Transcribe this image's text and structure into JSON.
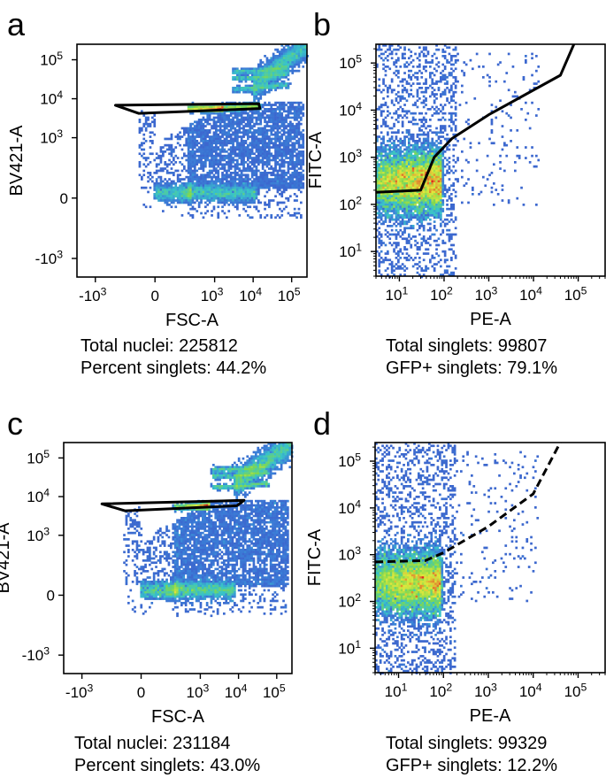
{
  "figure": {
    "panels": [
      {
        "letter": "a",
        "stats": [
          "Total nuclei: 225812",
          "Percent singlets: 44.2%"
        ]
      },
      {
        "letter": "b",
        "stats": [
          "Total singlets: 99807",
          "GFP+ singlets: 79.1%"
        ]
      },
      {
        "letter": "c",
        "stats": [
          "Total nuclei: 231184",
          "Percent singlets: 43.0%"
        ]
      },
      {
        "letter": "d",
        "stats": [
          "Total singlets: 99329",
          "GFP+ singlets: 12.2%"
        ]
      }
    ]
  },
  "colors": {
    "density_low": "#3c56c8",
    "density_mid": "#38c4c8",
    "density_high": "#e0e83c",
    "density_peak": "#e02820",
    "gate": "#000000"
  },
  "chart_data": [
    {
      "panel": "a",
      "type": "scatter",
      "subtype": "flow-cytometry density",
      "xlabel": "FSC-A",
      "ylabel": "BV421-A",
      "x_scale": "biexponential",
      "y_scale": "biexponential",
      "xlim": [
        -3000,
        250000
      ],
      "ylim": [
        -3000,
        250000
      ],
      "x_ticks": [
        {
          "value": -1000,
          "base": "-10",
          "exp": "3"
        },
        {
          "value": 0,
          "base": "0",
          "exp": ""
        },
        {
          "value": 1000,
          "base": "10",
          "exp": "3"
        },
        {
          "value": 10000,
          "base": "10",
          "exp": "4"
        },
        {
          "value": 100000,
          "base": "10",
          "exp": "5"
        }
      ],
      "y_ticks": [
        {
          "value": -1000,
          "base": "-10",
          "exp": "3"
        },
        {
          "value": 0,
          "base": "0",
          "exp": ""
        },
        {
          "value": 1000,
          "base": "10",
          "exp": "3"
        },
        {
          "value": 10000,
          "base": "10",
          "exp": "4"
        },
        {
          "value": 100000,
          "base": "10",
          "exp": "5"
        }
      ],
      "populations": [
        {
          "name": "main",
          "x_range": [
            0,
            200000
          ],
          "y_range": [
            0,
            8000
          ]
        },
        {
          "name": "baseline",
          "x_range": [
            0,
            12000
          ],
          "y": 30
        },
        {
          "name": "singlet-band",
          "x_range": [
            200,
            15000
          ],
          "y": 5500
        },
        {
          "name": "doublet-band",
          "x_range": [
            3000,
            80000
          ],
          "y": 18000
        },
        {
          "name": "upper-diagonal",
          "x_range": [
            10000,
            240000
          ],
          "y_range": [
            20000,
            240000
          ]
        }
      ],
      "gate": {
        "shape": "polygon",
        "style": "solid",
        "vertices": [
          [
            -300,
            6800
          ],
          [
            14000,
            7500
          ],
          [
            15000,
            5600
          ],
          [
            -100,
            4200
          ]
        ]
      },
      "total_events": 225812,
      "percent_singlets": 44.2
    },
    {
      "panel": "b",
      "type": "scatter",
      "subtype": "flow-cytometry density",
      "xlabel": "PE-A",
      "ylabel": "FITC-A",
      "x_scale": "log",
      "y_scale": "log",
      "xlim": [
        3,
        400000
      ],
      "ylim": [
        3,
        250000
      ],
      "x_ticks": [
        {
          "value": 10,
          "base": "10",
          "exp": "1"
        },
        {
          "value": 100,
          "base": "10",
          "exp": "2"
        },
        {
          "value": 1000,
          "base": "10",
          "exp": "3"
        },
        {
          "value": 10000,
          "base": "10",
          "exp": "4"
        },
        {
          "value": 100000,
          "base": "10",
          "exp": "5"
        }
      ],
      "y_ticks": [
        {
          "value": 10,
          "base": "10",
          "exp": "1"
        },
        {
          "value": 100,
          "base": "10",
          "exp": "2"
        },
        {
          "value": 1000,
          "base": "10",
          "exp": "3"
        },
        {
          "value": 10000,
          "base": "10",
          "exp": "4"
        },
        {
          "value": 100000,
          "base": "10",
          "exp": "5"
        }
      ],
      "populations": [
        {
          "name": "core",
          "x_range": [
            3,
            90
          ],
          "y_range": [
            60,
            3000
          ],
          "center_y": 300
        }
      ],
      "gate": {
        "shape": "polyline",
        "style": "solid",
        "vertices": [
          [
            3,
            180
          ],
          [
            30,
            200
          ],
          [
            60,
            1000
          ],
          [
            150,
            2500
          ],
          [
            1000,
            8000
          ],
          [
            40000,
            55000
          ],
          [
            80000,
            250000
          ]
        ]
      },
      "total_events": 99807,
      "percent_gfp_positive": 79.1
    },
    {
      "panel": "c",
      "type": "scatter",
      "subtype": "flow-cytometry density",
      "xlabel": "FSC-A",
      "ylabel": "BV421-A",
      "x_scale": "biexponential",
      "y_scale": "biexponential",
      "xlim": [
        -3000,
        250000
      ],
      "ylim": [
        -3000,
        250000
      ],
      "x_ticks": [
        {
          "value": -1000,
          "base": "-10",
          "exp": "3"
        },
        {
          "value": 0,
          "base": "0",
          "exp": ""
        },
        {
          "value": 1000,
          "base": "10",
          "exp": "3"
        },
        {
          "value": 10000,
          "base": "10",
          "exp": "4"
        },
        {
          "value": 100000,
          "base": "10",
          "exp": "5"
        }
      ],
      "y_ticks": [
        {
          "value": -1000,
          "base": "-10",
          "exp": "3"
        },
        {
          "value": 0,
          "base": "0",
          "exp": ""
        },
        {
          "value": 1000,
          "base": "10",
          "exp": "3"
        },
        {
          "value": 10000,
          "base": "10",
          "exp": "4"
        },
        {
          "value": 100000,
          "base": "10",
          "exp": "5"
        }
      ],
      "populations": [
        {
          "name": "main",
          "x_range": [
            0,
            200000
          ],
          "y_range": [
            0,
            8000
          ]
        },
        {
          "name": "baseline",
          "x_range": [
            0,
            8000
          ],
          "y": 30
        },
        {
          "name": "singlet-band",
          "x_range": [
            0,
            12000
          ],
          "y": 5500
        },
        {
          "name": "doublet-band",
          "x_range": [
            2000,
            60000
          ],
          "y": 18000
        },
        {
          "name": "upper-diagonal",
          "x_range": [
            8000,
            240000
          ],
          "y_range": [
            20000,
            240000
          ]
        }
      ],
      "gate": {
        "shape": "polygon",
        "style": "solid",
        "vertices": [
          [
            -300,
            6500
          ],
          [
            14000,
            8000
          ],
          [
            9000,
            5800
          ],
          [
            -100,
            4300
          ]
        ]
      },
      "total_events": 231184,
      "percent_singlets": 43.0
    },
    {
      "panel": "d",
      "type": "scatter",
      "subtype": "flow-cytometry density",
      "xlabel": "PE-A",
      "ylabel": "FITC-A",
      "x_scale": "log",
      "y_scale": "log",
      "xlim": [
        3,
        400000
      ],
      "ylim": [
        3,
        250000
      ],
      "x_ticks": [
        {
          "value": 10,
          "base": "10",
          "exp": "1"
        },
        {
          "value": 100,
          "base": "10",
          "exp": "2"
        },
        {
          "value": 1000,
          "base": "10",
          "exp": "3"
        },
        {
          "value": 10000,
          "base": "10",
          "exp": "4"
        },
        {
          "value": 100000,
          "base": "10",
          "exp": "5"
        }
      ],
      "y_ticks": [
        {
          "value": 10,
          "base": "10",
          "exp": "1"
        },
        {
          "value": 100,
          "base": "10",
          "exp": "2"
        },
        {
          "value": 1000,
          "base": "10",
          "exp": "3"
        },
        {
          "value": 10000,
          "base": "10",
          "exp": "4"
        },
        {
          "value": 100000,
          "base": "10",
          "exp": "5"
        }
      ],
      "populations": [
        {
          "name": "core",
          "x_range": [
            3,
            90
          ],
          "y_range": [
            60,
            1500
          ],
          "center_y": 250
        }
      ],
      "gate": {
        "shape": "polyline",
        "style": "dashed",
        "vertices": [
          [
            3,
            700
          ],
          [
            40,
            750
          ],
          [
            100,
            1100
          ],
          [
            1000,
            4000
          ],
          [
            10000,
            20000
          ],
          [
            40000,
            250000
          ]
        ]
      },
      "total_events": 99329,
      "percent_gfp_positive": 12.2
    }
  ]
}
